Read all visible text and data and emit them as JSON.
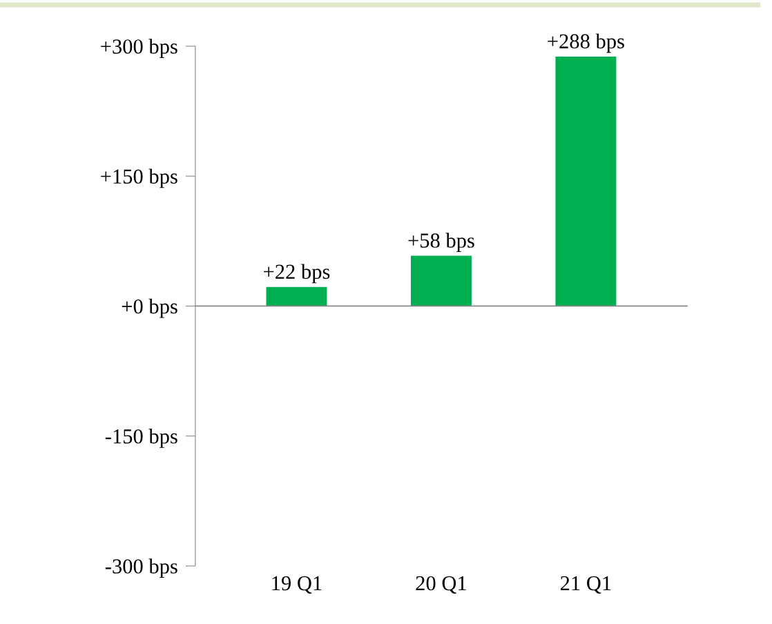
{
  "chart_data": {
    "type": "bar",
    "categories": [
      "19 Q1",
      "20 Q1",
      "21 Q1"
    ],
    "values": [
      22,
      58,
      288
    ],
    "color": "#00b050",
    "value_labels": [
      "+22 bps",
      "+58 bps",
      "+288 bps"
    ],
    "ylim": [
      -300,
      300
    ],
    "yticks": [
      {
        "value": -300,
        "label": "-300 bps"
      },
      {
        "value": -150,
        "label": "-150 bps"
      },
      {
        "value": 0,
        "label": "+0 bps"
      },
      {
        "value": 150,
        "label": "+150 bps"
      },
      {
        "value": 300,
        "label": "+300 bps"
      }
    ],
    "legend": false
  }
}
